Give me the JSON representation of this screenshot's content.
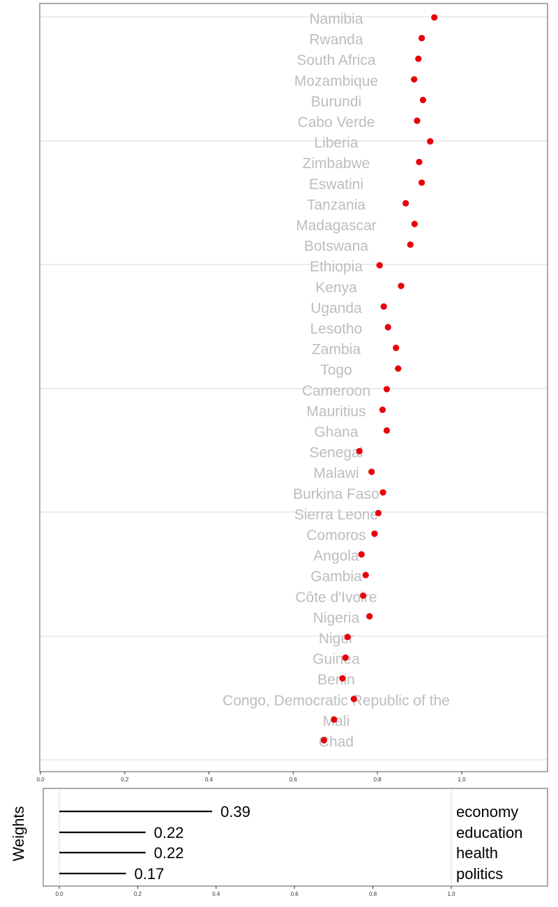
{
  "colors": {
    "point": "#e8000b",
    "country_label": "#bdbdbd",
    "grid": "#d9d9d9",
    "frame": "#555555",
    "weight_bar": "#000000"
  },
  "chart_data": [
    {
      "type": "scatter",
      "title": "",
      "xlabel": "",
      "ylabel": "",
      "xlim": [
        0,
        1.2
      ],
      "x_ticks": [
        "0.0",
        "0.2",
        "0.4",
        "0.6",
        "0.8",
        "1.0"
      ],
      "grid": "horizontal",
      "points": [
        {
          "country": "Namibia",
          "value": 0.935
        },
        {
          "country": "Rwanda",
          "value": 0.905
        },
        {
          "country": "South Africa",
          "value": 0.897
        },
        {
          "country": "Mozambique",
          "value": 0.887
        },
        {
          "country": "Burundi",
          "value": 0.908
        },
        {
          "country": "Cabo Verde",
          "value": 0.894
        },
        {
          "country": "Liberia",
          "value": 0.925
        },
        {
          "country": "Zimbabwe",
          "value": 0.899
        },
        {
          "country": "Eswatini",
          "value": 0.905
        },
        {
          "country": "Tanzania",
          "value": 0.867
        },
        {
          "country": "Madagascar",
          "value": 0.888
        },
        {
          "country": "Botswana",
          "value": 0.878
        },
        {
          "country": "Ethiopia",
          "value": 0.805
        },
        {
          "country": "Kenya",
          "value": 0.856
        },
        {
          "country": "Uganda",
          "value": 0.815
        },
        {
          "country": "Lesotho",
          "value": 0.825
        },
        {
          "country": "Zambia",
          "value": 0.844
        },
        {
          "country": "Togo",
          "value": 0.849
        },
        {
          "country": "Cameroon",
          "value": 0.822
        },
        {
          "country": "Mauritius",
          "value": 0.812
        },
        {
          "country": "Ghana",
          "value": 0.822
        },
        {
          "country": "Senegal",
          "value": 0.757
        },
        {
          "country": "Malawi",
          "value": 0.786
        },
        {
          "country": "Burkina Faso",
          "value": 0.813
        },
        {
          "country": "Sierra Leone",
          "value": 0.802
        },
        {
          "country": "Comoros",
          "value": 0.793
        },
        {
          "country": "Angola",
          "value": 0.762
        },
        {
          "country": "Gambia",
          "value": 0.772
        },
        {
          "country": "Côte d'Ivoire",
          "value": 0.766
        },
        {
          "country": "Nigeria",
          "value": 0.781
        },
        {
          "country": "Niger",
          "value": 0.729
        },
        {
          "country": "Guinea",
          "value": 0.724
        },
        {
          "country": "Benin",
          "value": 0.717
        },
        {
          "country": "Congo, Democratic Republic of the",
          "value": 0.744
        },
        {
          "country": "Mali",
          "value": 0.697
        },
        {
          "country": "Chad",
          "value": 0.673
        }
      ]
    },
    {
      "type": "bar",
      "orientation": "horizontal",
      "ylabel": "Weights",
      "xlim": [
        0,
        1.2
      ],
      "x_ticks": [
        "0.0",
        "0.2",
        "0.4",
        "0.6",
        "0.8",
        "1.0"
      ],
      "categories": [
        "economy",
        "education",
        "health",
        "politics"
      ],
      "values": [
        0.39,
        0.22,
        0.22,
        0.17
      ],
      "value_labels": [
        "0.39",
        "0.22",
        "0.22",
        "0.17"
      ]
    }
  ]
}
